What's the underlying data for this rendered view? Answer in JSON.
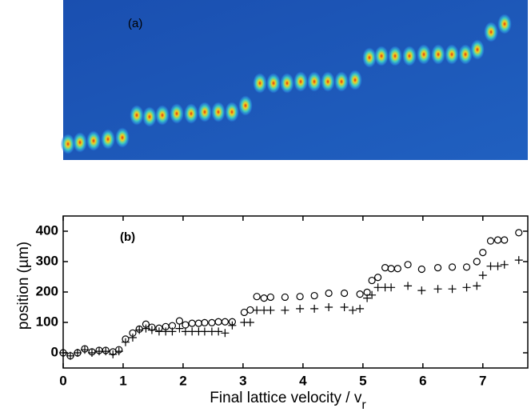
{
  "panel_a": {
    "label": "(a)"
  },
  "chart_data": {
    "type": "scatter",
    "panel_label": "(b)",
    "xlabel": "Final lattice velocity / v",
    "xlabel_subscript": "r",
    "ylabel": "position (µm)",
    "xlim": [
      0,
      7.75
    ],
    "ylim": [
      -50,
      450
    ],
    "xticks": [
      0,
      1,
      2,
      3,
      4,
      5,
      6,
      7
    ],
    "yticks": [
      0,
      100,
      200,
      300,
      400
    ],
    "series": [
      {
        "marker": "circle",
        "color": "#000000",
        "x": [
          0,
          0.12,
          0.24,
          0.36,
          0.48,
          0.6,
          0.71,
          0.83,
          0.93,
          1.04,
          1.16,
          1.27,
          1.38,
          1.48,
          1.6,
          1.71,
          1.82,
          1.94,
          2.04,
          2.15,
          2.26,
          2.36,
          2.48,
          2.59,
          2.7,
          2.82,
          3.02,
          3.12,
          3.23,
          3.35,
          3.46,
          3.7,
          3.95,
          4.19,
          4.43,
          4.69,
          4.95,
          5.07,
          5.15,
          5.25,
          5.37,
          5.47,
          5.58,
          5.75,
          5.98,
          6.25,
          6.49,
          6.73,
          6.9,
          7.0,
          7.13,
          7.25,
          7.36,
          7.6
        ],
        "values": [
          0,
          -10,
          0,
          13,
          3,
          8,
          8,
          3,
          10,
          45,
          65,
          78,
          94,
          84,
          81,
          86,
          89,
          105,
          92,
          97,
          97,
          99,
          99,
          102,
          102,
          102,
          133,
          141,
          185,
          180,
          183,
          183,
          185,
          188,
          196,
          196,
          193,
          199,
          238,
          248,
          280,
          277,
          277,
          290,
          275,
          280,
          282,
          282,
          300,
          330,
          368,
          371,
          371,
          395
        ]
      },
      {
        "marker": "plus",
        "color": "#000000",
        "x": [
          0,
          0.12,
          0.24,
          0.36,
          0.48,
          0.6,
          0.71,
          0.83,
          0.93,
          1.04,
          1.16,
          1.27,
          1.38,
          1.48,
          1.6,
          1.71,
          1.82,
          1.94,
          2.04,
          2.15,
          2.26,
          2.36,
          2.48,
          2.59,
          2.7,
          2.82,
          3.02,
          3.12,
          3.23,
          3.35,
          3.46,
          3.7,
          3.95,
          4.19,
          4.43,
          4.69,
          4.83,
          4.95,
          5.07,
          5.15,
          5.25,
          5.37,
          5.47,
          5.75,
          5.98,
          6.25,
          6.49,
          6.73,
          6.9,
          7.0,
          7.13,
          7.25,
          7.36,
          7.6
        ],
        "values": [
          0,
          -10,
          0,
          10,
          0,
          5,
          5,
          -5,
          5,
          35,
          50,
          75,
          80,
          75,
          70,
          70,
          70,
          80,
          70,
          70,
          70,
          70,
          70,
          70,
          65,
          90,
          100,
          100,
          140,
          140,
          140,
          140,
          145,
          145,
          150,
          150,
          140,
          145,
          180,
          190,
          215,
          215,
          215,
          220,
          205,
          210,
          210,
          215,
          220,
          255,
          285,
          285,
          290,
          305
        ]
      }
    ]
  }
}
